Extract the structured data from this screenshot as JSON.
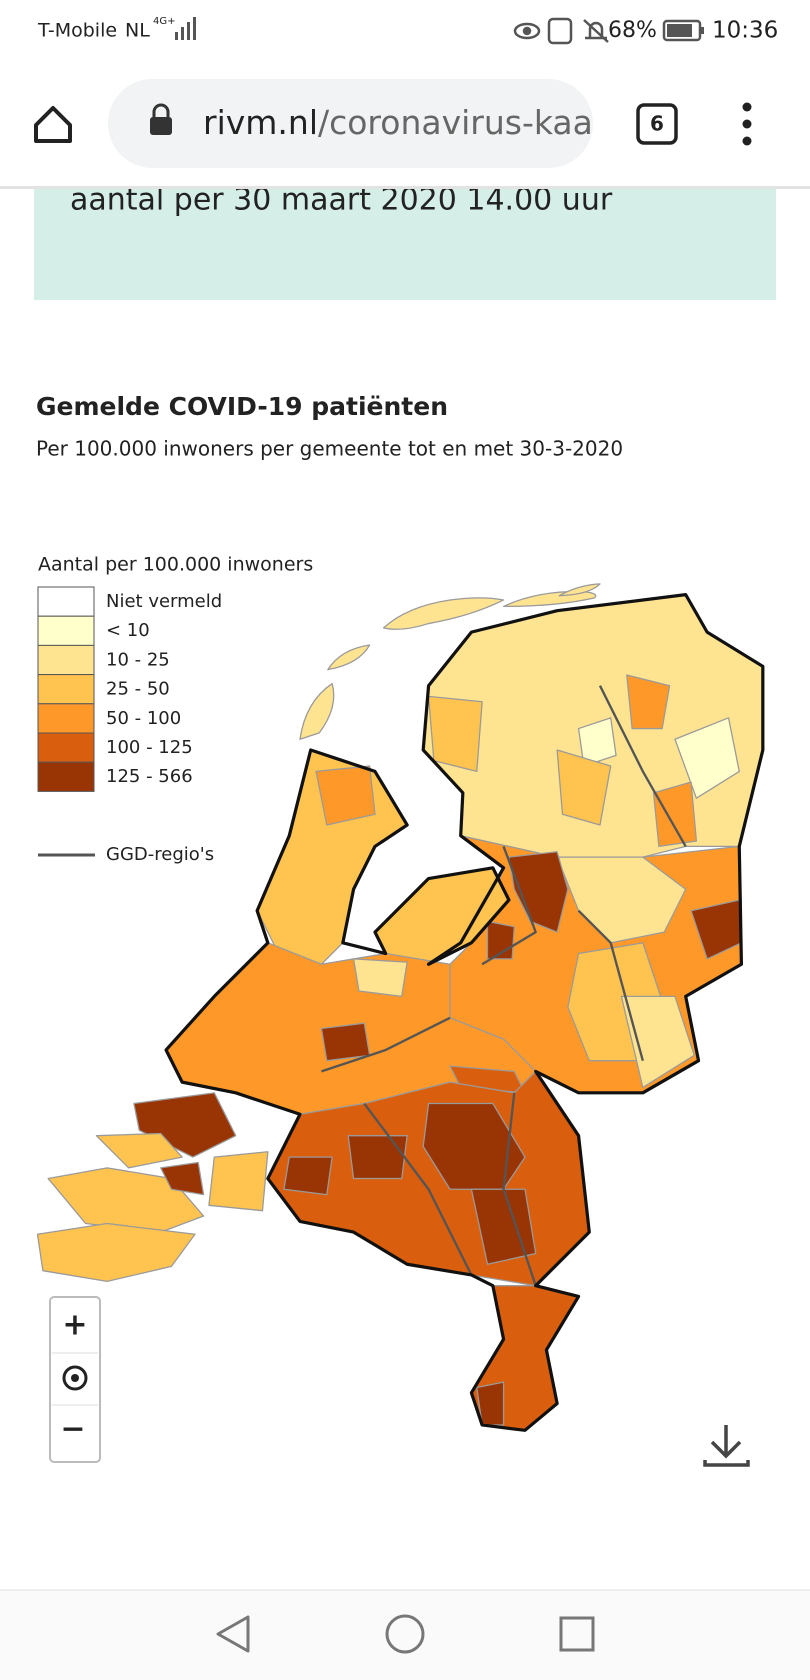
{
  "status_bar": {
    "carrier": "T-Mobile",
    "network": "NL",
    "signal": "4G+",
    "battery": "68%",
    "time": "10:36"
  },
  "browser": {
    "url_domain": "rivm.nl",
    "url_path": "/coronavirus-kaa",
    "tab_count": "6"
  },
  "banner": {
    "text": "aantal per 30 maart 2020 14.00 uur"
  },
  "map": {
    "title": "Gemelde COVID-19 patiënten",
    "subtitle": "Per 100.000 inwoners per gemeente tot en met 30-3-2020",
    "legend_title": "Aantal per 100.000 inwoners",
    "legend": [
      {
        "label": "Niet vermeld",
        "color": "#ffffff"
      },
      {
        "label": "< 10",
        "color": "#ffffcc"
      },
      {
        "label": "10 - 25",
        "color": "#fee391"
      },
      {
        "label": "25 - 50",
        "color": "#fec44f"
      },
      {
        "label": "50 - 100",
        "color": "#fe9929"
      },
      {
        "label": "100 - 125",
        "color": "#d95f0e"
      },
      {
        "label": "125 - 566",
        "color": "#993404"
      }
    ],
    "region_line_label": "GGD-regio's",
    "zoom_in": "+",
    "zoom_out": "−"
  }
}
